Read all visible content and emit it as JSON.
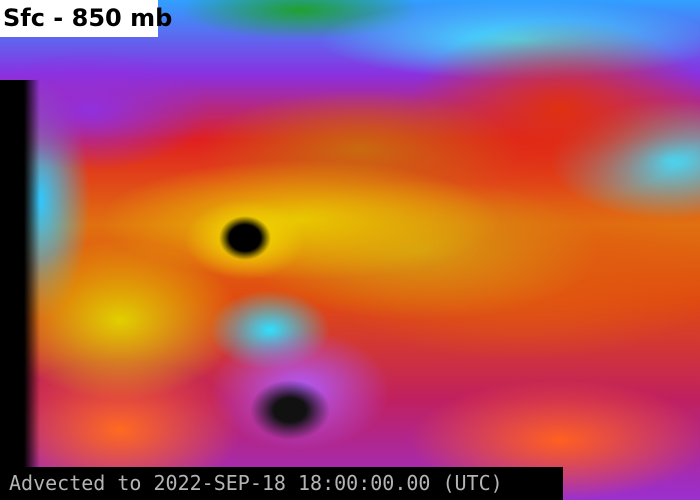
{
  "map": {
    "title": "Sfc - 850 mb",
    "timestamp": "Advected to 2022-SEP-18 18:00:00.00 (UTC)",
    "colors": {
      "title_background": "#ffffff",
      "timestamp_background": "#000000",
      "timestamp_text": "#b4b4b4"
    }
  }
}
